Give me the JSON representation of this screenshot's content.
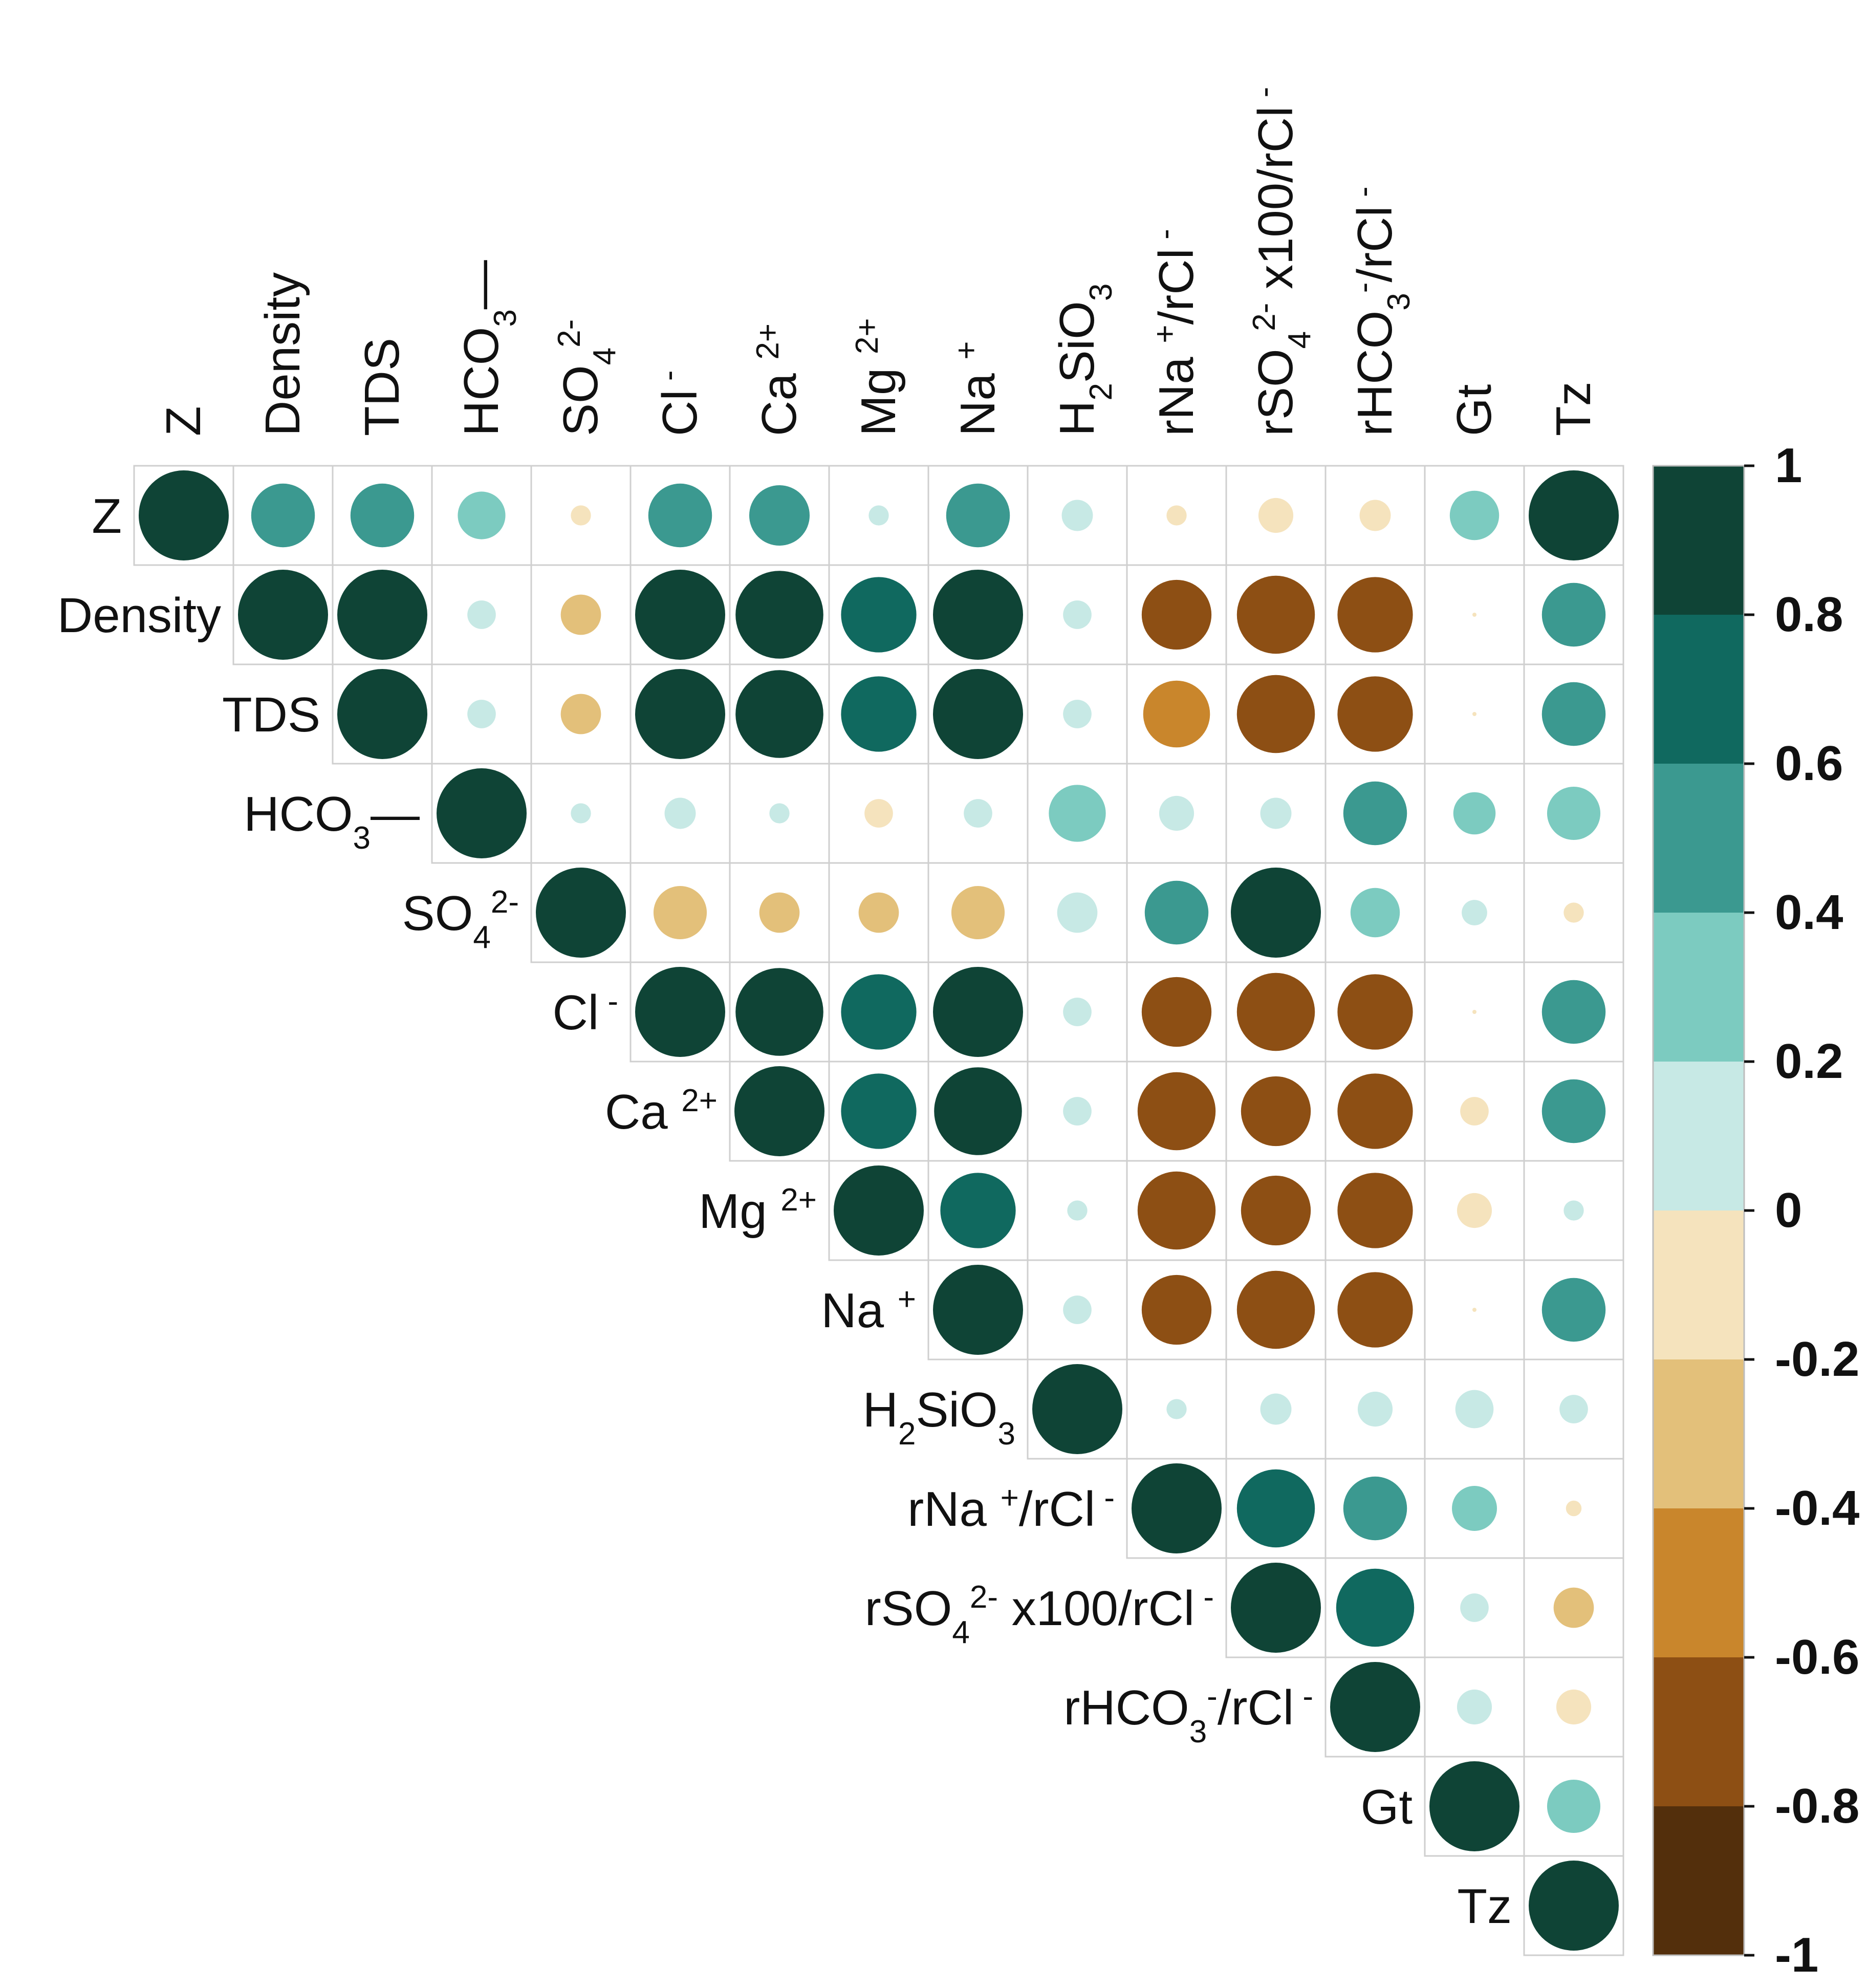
{
  "chart_data": {
    "type": "heatmap",
    "subtype": "correlogram-upper-triangle-circles",
    "variables": [
      {
        "id": "Z",
        "parts": [
          {
            "t": "Z"
          }
        ]
      },
      {
        "id": "Density",
        "parts": [
          {
            "t": "Density"
          }
        ]
      },
      {
        "id": "TDS",
        "parts": [
          {
            "t": "TDS"
          }
        ]
      },
      {
        "id": "HCO3",
        "parts": [
          {
            "t": "HCO"
          },
          {
            "t": "3",
            "s": "sub"
          },
          {
            "t": "—"
          }
        ]
      },
      {
        "id": "SO4",
        "parts": [
          {
            "t": "SO"
          },
          {
            "t": "4",
            "s": "sub"
          },
          {
            "t": "2-",
            "s": "sup"
          }
        ]
      },
      {
        "id": "Cl",
        "parts": [
          {
            "t": "Cl"
          },
          {
            "t": " -",
            "s": "sup"
          }
        ]
      },
      {
        "id": "Ca",
        "parts": [
          {
            "t": "Ca "
          },
          {
            "t": "2+",
            "s": "sup"
          }
        ]
      },
      {
        "id": "Mg",
        "parts": [
          {
            "t": "Mg "
          },
          {
            "t": "2+",
            "s": "sup"
          }
        ]
      },
      {
        "id": "Na",
        "parts": [
          {
            "t": "Na "
          },
          {
            "t": "+",
            "s": "sup"
          }
        ]
      },
      {
        "id": "H2SiO3",
        "parts": [
          {
            "t": "H"
          },
          {
            "t": "2",
            "s": "sub"
          },
          {
            "t": "SiO"
          },
          {
            "t": "3",
            "s": "sub"
          }
        ]
      },
      {
        "id": "rNa_rCl",
        "parts": [
          {
            "t": "rNa "
          },
          {
            "t": "+",
            "s": "sup"
          },
          {
            "t": "/rCl"
          },
          {
            "t": " -",
            "s": "sup"
          }
        ]
      },
      {
        "id": "rSO4_rCl",
        "parts": [
          {
            "t": "rSO"
          },
          {
            "t": "4",
            "s": "sub"
          },
          {
            "t": "2-",
            "s": "sup"
          },
          {
            "t": " x100/rCl"
          },
          {
            "t": " -",
            "s": "sup"
          }
        ]
      },
      {
        "id": "rHCO3_rCl",
        "parts": [
          {
            "t": "rHCO"
          },
          {
            "t": "3",
            "s": "sub"
          },
          {
            "t": "-",
            "s": "sup"
          },
          {
            "t": "/rCl"
          },
          {
            "t": " -",
            "s": "sup"
          }
        ]
      },
      {
        "id": "Gt",
        "parts": [
          {
            "t": "Gt"
          }
        ]
      },
      {
        "id": "Tz",
        "parts": [
          {
            "t": "Tz"
          }
        ]
      }
    ],
    "matrix": [
      [
        1.0,
        0.5,
        0.5,
        0.28,
        -0.05,
        0.5,
        0.45,
        0.05,
        0.5,
        0.12,
        -0.05,
        -0.15,
        -0.12,
        0.3,
        1.0
      ],
      [
        null,
        1.0,
        1.0,
        0.1,
        -0.2,
        1.0,
        0.95,
        0.7,
        1.0,
        0.1,
        -0.6,
        -0.75,
        -0.7,
        0.0,
        0.5
      ],
      [
        null,
        null,
        1.0,
        0.1,
        -0.2,
        1.0,
        0.95,
        0.7,
        1.0,
        0.1,
        -0.55,
        -0.75,
        -0.7,
        0.0,
        0.5
      ],
      [
        null,
        null,
        null,
        1.0,
        0.05,
        0.12,
        0.05,
        -0.1,
        0.1,
        0.4,
        0.15,
        0.12,
        0.5,
        0.22,
        0.35
      ],
      [
        null,
        null,
        null,
        null,
        1.0,
        -0.35,
        -0.2,
        -0.2,
        -0.35,
        0.2,
        0.5,
        1.0,
        0.3,
        0.08,
        -0.05
      ],
      [
        null,
        null,
        null,
        null,
        null,
        1.0,
        0.95,
        0.7,
        1.0,
        0.1,
        -0.6,
        -0.75,
        -0.7,
        0.0,
        0.5
      ],
      [
        null,
        null,
        null,
        null,
        null,
        null,
        1.0,
        0.7,
        0.95,
        0.1,
        -0.75,
        -0.6,
        -0.7,
        -0.1,
        0.5
      ],
      [
        null,
        null,
        null,
        null,
        null,
        null,
        null,
        1.0,
        0.7,
        0.05,
        -0.75,
        -0.6,
        -0.7,
        -0.15,
        0.05
      ],
      [
        null,
        null,
        null,
        null,
        null,
        null,
        null,
        null,
        1.0,
        0.1,
        -0.6,
        -0.75,
        -0.7,
        0.0,
        0.5
      ],
      [
        null,
        null,
        null,
        null,
        null,
        null,
        null,
        null,
        null,
        1.0,
        0.05,
        0.12,
        0.15,
        0.18,
        0.1
      ],
      [
        null,
        null,
        null,
        null,
        null,
        null,
        null,
        null,
        null,
        null,
        1.0,
        0.75,
        0.5,
        0.25,
        -0.03
      ],
      [
        null,
        null,
        null,
        null,
        null,
        null,
        null,
        null,
        null,
        null,
        null,
        1.0,
        0.75,
        0.1,
        -0.2
      ],
      [
        null,
        null,
        null,
        null,
        null,
        null,
        null,
        null,
        null,
        null,
        null,
        null,
        1.0,
        0.15,
        -0.15
      ],
      [
        null,
        null,
        null,
        null,
        null,
        null,
        null,
        null,
        null,
        null,
        null,
        null,
        null,
        1.0,
        0.35
      ],
      [
        null,
        null,
        null,
        null,
        null,
        null,
        null,
        null,
        null,
        null,
        null,
        null,
        null,
        null,
        1.0
      ]
    ],
    "colorbar": {
      "range": [
        -1,
        1
      ],
      "ticks": [
        "1",
        "0.8",
        "0.6",
        "0.4",
        "0.2",
        "0",
        "-0.2",
        "-0.4",
        "-0.6",
        "-0.8",
        "-1"
      ],
      "bins": [
        {
          "from": 0.8,
          "to": 1.0,
          "color": "#0f4436"
        },
        {
          "from": 0.6,
          "to": 0.8,
          "color": "#10695f"
        },
        {
          "from": 0.4,
          "to": 0.6,
          "color": "#3b9990"
        },
        {
          "from": 0.2,
          "to": 0.4,
          "color": "#7ccbc0"
        },
        {
          "from": 0.0,
          "to": 0.2,
          "color": "#c7e9e5"
        },
        {
          "from": -0.2,
          "to": 0.0,
          "color": "#f5e3bd"
        },
        {
          "from": -0.4,
          "to": -0.2,
          "color": "#e3c07a"
        },
        {
          "from": -0.6,
          "to": -0.4,
          "color": "#c9862c"
        },
        {
          "from": -0.8,
          "to": -0.6,
          "color": "#8d4f14"
        },
        {
          "from": -1.0,
          "to": -0.8,
          "color": "#532f0c"
        }
      ]
    },
    "title": "",
    "xlabel": "",
    "ylabel": "",
    "grid": true,
    "legend": "right"
  }
}
